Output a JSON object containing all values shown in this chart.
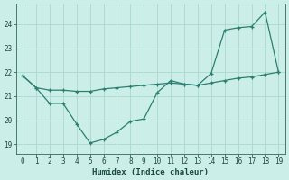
{
  "line1_x": [
    0,
    1,
    2,
    3,
    4,
    5,
    6,
    7,
    8,
    9,
    10,
    11,
    12,
    13,
    14,
    15,
    16,
    17,
    18,
    19
  ],
  "line1_y": [
    21.85,
    21.35,
    21.25,
    21.25,
    21.2,
    21.2,
    21.3,
    21.35,
    21.4,
    21.45,
    21.5,
    21.55,
    21.5,
    21.45,
    21.55,
    21.65,
    21.75,
    21.8,
    21.9,
    22.0
  ],
  "line2_x": [
    0,
    1,
    2,
    3,
    4,
    5,
    6,
    7,
    8,
    9,
    10,
    11,
    12,
    13,
    14,
    15,
    16,
    17,
    18,
    19
  ],
  "line2_y": [
    21.85,
    21.35,
    20.7,
    20.7,
    19.85,
    19.05,
    19.2,
    19.5,
    19.95,
    20.05,
    21.15,
    21.65,
    21.5,
    21.45,
    21.95,
    23.75,
    23.85,
    23.9,
    24.5,
    22.0
  ],
  "color": "#2a7f6f",
  "bg_color": "#cceee8",
  "grid_color": "#aad8d0",
  "xlabel": "Humidex (Indice chaleur)",
  "yticks": [
    19,
    20,
    21,
    22,
    23,
    24
  ],
  "xticks": [
    0,
    1,
    2,
    3,
    4,
    5,
    6,
    7,
    8,
    9,
    10,
    11,
    12,
    13,
    14,
    15,
    16,
    17,
    18,
    19
  ],
  "ylim": [
    18.6,
    24.85
  ],
  "xlim": [
    -0.5,
    19.5
  ]
}
